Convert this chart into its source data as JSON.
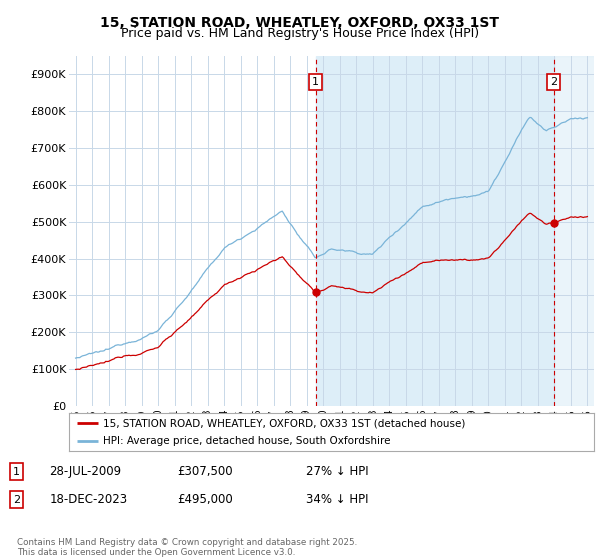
{
  "title": "15, STATION ROAD, WHEATLEY, OXFORD, OX33 1ST",
  "subtitle": "Price paid vs. HM Land Registry's House Price Index (HPI)",
  "title_fontsize": 10,
  "subtitle_fontsize": 9,
  "ylim": [
    0,
    950000
  ],
  "yticks": [
    0,
    100000,
    200000,
    300000,
    400000,
    500000,
    600000,
    700000,
    800000,
    900000
  ],
  "ytick_labels": [
    "£0",
    "£100K",
    "£200K",
    "£300K",
    "£400K",
    "£500K",
    "£600K",
    "£700K",
    "£800K",
    "£900K"
  ],
  "hpi_color": "#7ab4d8",
  "price_color": "#cc0000",
  "sale1_date": "28-JUL-2009",
  "sale1_price": "£307,500",
  "sale1_hpi": "27% ↓ HPI",
  "sale2_date": "18-DEC-2023",
  "sale2_price": "£495,000",
  "sale2_hpi": "34% ↓ HPI",
  "legend1": "15, STATION ROAD, WHEATLEY, OXFORD, OX33 1ST (detached house)",
  "legend2": "HPI: Average price, detached house, South Oxfordshire",
  "footer": "Contains HM Land Registry data © Crown copyright and database right 2025.\nThis data is licensed under the Open Government Licence v3.0.",
  "background_color": "#ffffff",
  "grid_color": "#c8d8e8",
  "shade_color": "#ddeef8",
  "xstart_year": 1995,
  "xend_year": 2026,
  "sale1_year": 2009.542,
  "sale2_year": 2023.958,
  "sale1_value": 307500,
  "sale2_value": 495000
}
